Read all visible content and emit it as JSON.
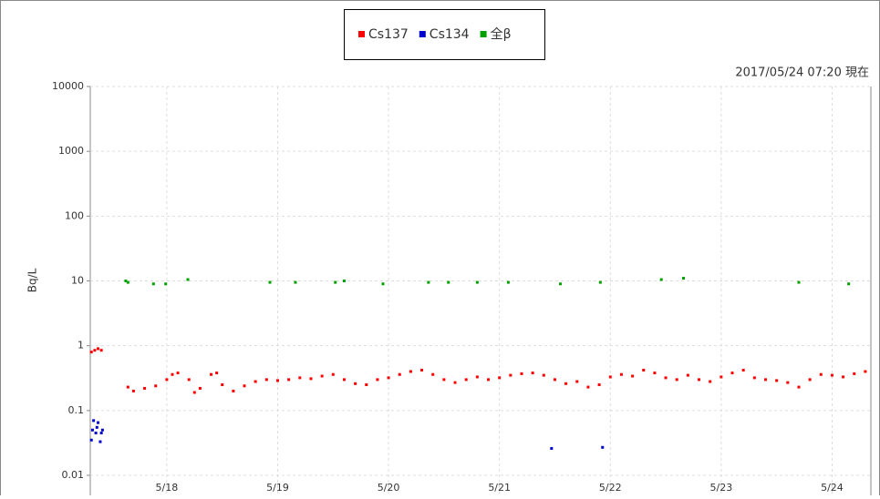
{
  "chart_data": {
    "type": "scatter",
    "timestamp": "2017/05/24 07:20 現在",
    "y_label": "Bq/L",
    "log_y": true,
    "grid": true,
    "xlim": [
      17.31,
      24.35
    ],
    "xticks": [
      {
        "value": 18,
        "label": "5/18"
      },
      {
        "value": 19,
        "label": "5/19"
      },
      {
        "value": 20,
        "label": "5/20"
      },
      {
        "value": 21,
        "label": "5/21"
      },
      {
        "value": 22,
        "label": "5/22"
      },
      {
        "value": 23,
        "label": "5/23"
      },
      {
        "value": 24,
        "label": "5/24"
      }
    ],
    "ylim": [
      0.01,
      10000
    ],
    "yticks": [
      0.01,
      0.1,
      1,
      10,
      100,
      1000,
      10000
    ],
    "series": [
      {
        "name": "Cs137",
        "color": "#ff0000",
        "x": [
          17.32,
          17.35,
          17.38,
          17.41,
          17.65,
          17.7,
          17.8,
          17.9,
          18.0,
          18.05,
          18.1,
          18.2,
          18.25,
          18.3,
          18.4,
          18.45,
          18.5,
          18.6,
          18.7,
          18.8,
          18.9,
          19.0,
          19.1,
          19.2,
          19.3,
          19.4,
          19.5,
          19.6,
          19.7,
          19.8,
          19.9,
          20.0,
          20.1,
          20.2,
          20.3,
          20.4,
          20.5,
          20.6,
          20.7,
          20.8,
          20.9,
          21.0,
          21.1,
          21.2,
          21.3,
          21.4,
          21.5,
          21.6,
          21.7,
          21.8,
          21.9,
          22.0,
          22.1,
          22.2,
          22.3,
          22.4,
          22.5,
          22.6,
          22.7,
          22.8,
          22.9,
          23.0,
          23.1,
          23.2,
          23.3,
          23.4,
          23.5,
          23.6,
          23.7,
          23.8,
          23.9,
          24.0,
          24.1,
          24.2,
          24.3
        ],
        "values": [
          0.8,
          0.85,
          0.9,
          0.85,
          0.23,
          0.2,
          0.22,
          0.24,
          0.3,
          0.36,
          0.38,
          0.3,
          0.19,
          0.22,
          0.36,
          0.38,
          0.25,
          0.2,
          0.24,
          0.28,
          0.3,
          0.29,
          0.3,
          0.32,
          0.31,
          0.34,
          0.36,
          0.3,
          0.26,
          0.25,
          0.3,
          0.32,
          0.36,
          0.4,
          0.42,
          0.36,
          0.3,
          0.27,
          0.3,
          0.33,
          0.3,
          0.32,
          0.35,
          0.37,
          0.38,
          0.35,
          0.3,
          0.26,
          0.28,
          0.23,
          0.25,
          0.33,
          0.36,
          0.34,
          0.42,
          0.38,
          0.32,
          0.3,
          0.35,
          0.3,
          0.28,
          0.33,
          0.38,
          0.42,
          0.32,
          0.3,
          0.29,
          0.27,
          0.23,
          0.3,
          0.36,
          0.35,
          0.33,
          0.37,
          0.4
        ]
      },
      {
        "name": "Cs134",
        "color": "#0000cc",
        "x": [
          17.32,
          17.33,
          17.34,
          17.36,
          17.37,
          17.38,
          17.4,
          17.41,
          17.42,
          21.47,
          21.93
        ],
        "values": [
          0.035,
          0.05,
          0.07,
          0.045,
          0.055,
          0.065,
          0.033,
          0.045,
          0.05,
          0.026,
          0.027
        ]
      },
      {
        "name": "全β",
        "color": "#00a000",
        "x": [
          17.63,
          17.65,
          17.88,
          17.99,
          18.19,
          18.93,
          19.16,
          19.52,
          19.6,
          19.95,
          20.36,
          20.54,
          20.8,
          21.08,
          21.55,
          21.91,
          22.46,
          22.66,
          23.7,
          24.15
        ],
        "values": [
          10,
          9.5,
          9,
          9,
          10.5,
          9.5,
          9.5,
          9.5,
          10,
          9,
          9.5,
          9.5,
          9.5,
          9.5,
          9,
          9.5,
          10.5,
          11,
          9.5,
          9
        ]
      }
    ]
  }
}
